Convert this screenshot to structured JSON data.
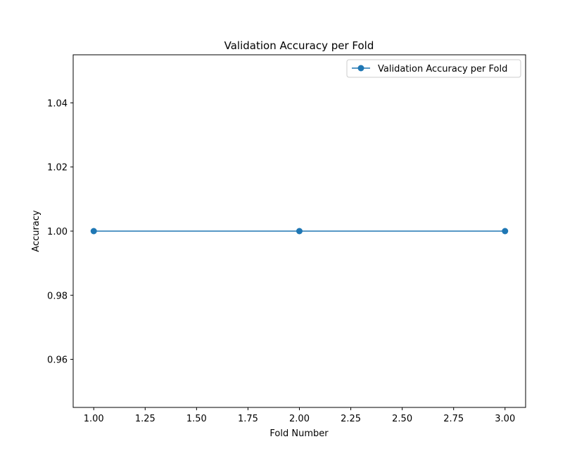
{
  "chart_data": {
    "type": "line",
    "title": "Validation Accuracy per Fold",
    "xlabel": "Fold Number",
    "ylabel": "Accuracy",
    "x": [
      1.0,
      2.0,
      3.0
    ],
    "series": [
      {
        "name": "Validation Accuracy per Fold",
        "values": [
          1.0,
          1.0,
          1.0
        ],
        "color": "#1f77b4",
        "marker": "circle"
      }
    ],
    "xlim": [
      0.9,
      3.1
    ],
    "ylim": [
      0.945,
      1.055
    ],
    "xticks": [
      1.0,
      1.25,
      1.5,
      1.75,
      2.0,
      2.25,
      2.5,
      2.75,
      3.0
    ],
    "xtick_labels": [
      "1.00",
      "1.25",
      "1.50",
      "1.75",
      "2.00",
      "2.25",
      "2.50",
      "2.75",
      "3.00"
    ],
    "yticks": [
      0.96,
      0.98,
      1.0,
      1.02,
      1.04
    ],
    "ytick_labels": [
      "0.96",
      "0.98",
      "1.00",
      "1.02",
      "1.04"
    ],
    "grid": false,
    "legend_position": "top-right"
  }
}
